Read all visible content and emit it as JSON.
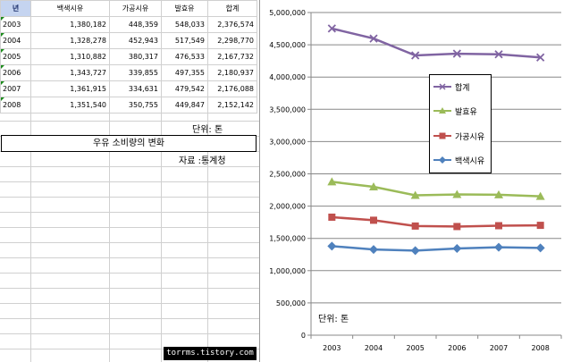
{
  "sheet": {
    "header": [
      "년",
      "백색시유",
      "가공시유",
      "발효유",
      "합계"
    ],
    "rows": [
      [
        "2003",
        "1,380,182",
        "448,359",
        "548,033",
        "2,376,574"
      ],
      [
        "2004",
        "1,328,278",
        "452,943",
        "517,549",
        "2,298,770"
      ],
      [
        "2005",
        "1,310,882",
        "380,317",
        "476,533",
        "2,167,732"
      ],
      [
        "2006",
        "1,343,727",
        "339,855",
        "497,355",
        "2,180,937"
      ],
      [
        "2007",
        "1,361,915",
        "334,631",
        "479,542",
        "2,176,088"
      ],
      [
        "2008",
        "1,351,540",
        "350,755",
        "449,847",
        "2,152,142"
      ]
    ],
    "unit": "단위: 톤",
    "title": "우유 소비량의 변화",
    "source": "자료 :통계청"
  },
  "watermark": "torrms.tistory.com",
  "chart_data": {
    "type": "line",
    "categories": [
      "2003",
      "2004",
      "2005",
      "2006",
      "2007",
      "2008"
    ],
    "series": [
      {
        "name": "합계",
        "color": "#8064a2",
        "marker": "x",
        "values": [
          2376574,
          2298770,
          2167732,
          2180937,
          2176088,
          2152142
        ],
        "plot_values": [
          4752000,
          4597000,
          4335000,
          4362000,
          4352000,
          4304000
        ]
      },
      {
        "name": "발효유",
        "color": "#9bbb59",
        "marker": "triangle",
        "values": [
          548033,
          517549,
          476533,
          497355,
          479542,
          449847
        ],
        "plot_values": [
          2376574,
          2298770,
          2167732,
          2180937,
          2176088,
          2152142
        ]
      },
      {
        "name": "가공시유",
        "color": "#c0504d",
        "marker": "square",
        "values": [
          448359,
          452943,
          380317,
          339855,
          334631,
          350755
        ],
        "plot_values": [
          1828541,
          1781221,
          1691199,
          1683582,
          1696546,
          1702295
        ]
      },
      {
        "name": "백색시유",
        "color": "#4f81bd",
        "marker": "diamond",
        "values": [
          1380182,
          1328278,
          1310882,
          1343727,
          1361915,
          1351540
        ],
        "plot_values": [
          1380182,
          1328278,
          1310882,
          1343727,
          1361915,
          1351540
        ]
      }
    ],
    "ylim": [
      0,
      5000000
    ],
    "yticks": [
      "0",
      "500,000",
      "1,000,000",
      "1,500,000",
      "2,000,000",
      "2,500,000",
      "3,000,000",
      "3,500,000",
      "4,000,000",
      "4,500,000",
      "5,000,000"
    ],
    "grid": true,
    "legend_position": "right",
    "annotation": "단위: 톤"
  }
}
